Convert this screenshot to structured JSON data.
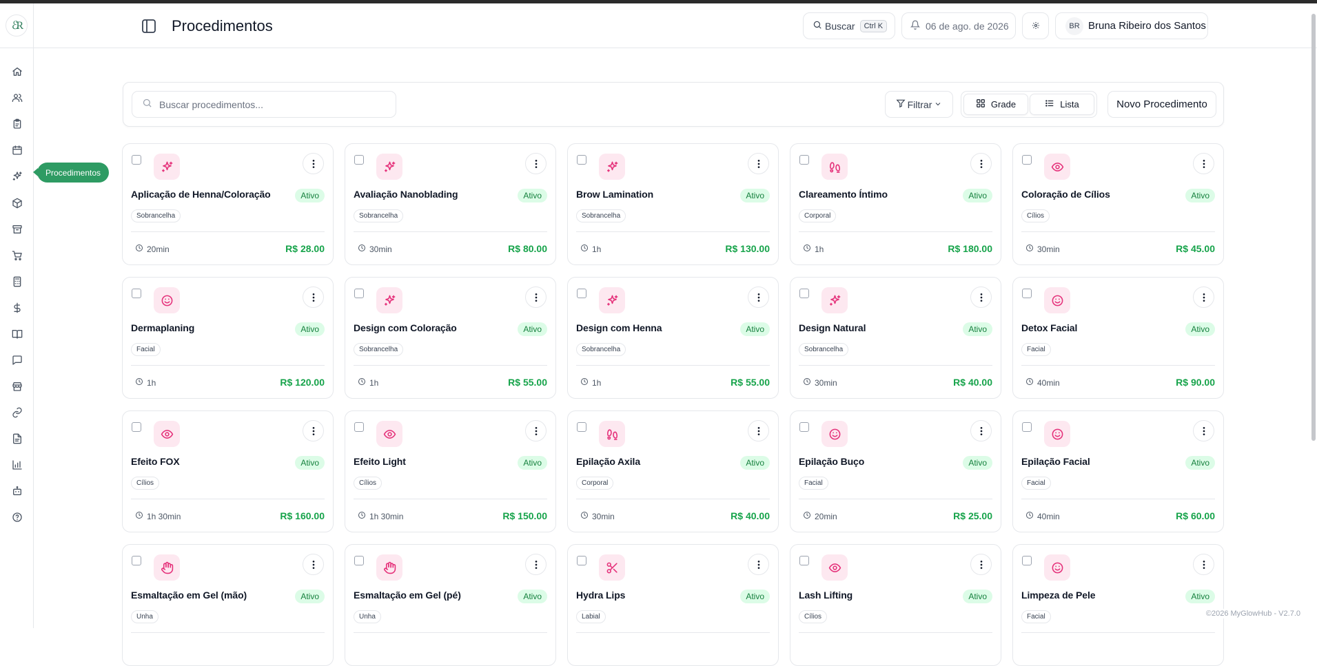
{
  "header": {
    "title": "Procedimentos",
    "search_label": "Buscar",
    "search_shortcut": "Ctrl K",
    "date": "06 de ago. de 2026",
    "user_initials": "BR",
    "user_name": "Bruna Ribeiro dos Santos"
  },
  "sidebar": {
    "logo": "ℰR",
    "tooltip": "Procedimentos",
    "items": [
      "home-icon",
      "users-icon",
      "clipboard-icon",
      "calendar-icon",
      "sparkles-icon",
      "package-icon",
      "archive-icon",
      "cart-icon",
      "calculator-icon",
      "dollar-icon",
      "book-icon",
      "message-icon",
      "store-icon",
      "link-icon",
      "file-icon",
      "chart-icon",
      "bot-icon",
      "help-icon"
    ]
  },
  "toolbar": {
    "search_placeholder": "Buscar procedimentos...",
    "filter_label": "Filtrar",
    "grid_label": "Grade",
    "list_label": "Lista",
    "new_label": "Novo Procedimento"
  },
  "cards": [
    {
      "name": "Aplicação de Henna/Coloração",
      "status": "Ativo",
      "category": "Sobrancelha",
      "icon": "sparkles-icon",
      "duration": "20min",
      "price": "R$ 28.00"
    },
    {
      "name": "Avaliação Nanoblading",
      "status": "Ativo",
      "category": "Sobrancelha",
      "icon": "sparkles-icon",
      "duration": "30min",
      "price": "R$ 80.00"
    },
    {
      "name": "Brow Lamination",
      "status": "Ativo",
      "category": "Sobrancelha",
      "icon": "sparkles-icon",
      "duration": "1h",
      "price": "R$ 130.00"
    },
    {
      "name": "Clareamento Íntimo",
      "status": "Ativo",
      "category": "Corporal",
      "icon": "footprints-icon",
      "duration": "1h",
      "price": "R$ 180.00"
    },
    {
      "name": "Coloração de Cílios",
      "status": "Ativo",
      "category": "Cílios",
      "icon": "eye-icon",
      "duration": "30min",
      "price": "R$ 45.00"
    },
    {
      "name": "Dermaplaning",
      "status": "Ativo",
      "category": "Facial",
      "icon": "smile-icon",
      "duration": "1h",
      "price": "R$ 120.00"
    },
    {
      "name": "Design com Coloração",
      "status": "Ativo",
      "category": "Sobrancelha",
      "icon": "sparkles-icon",
      "duration": "1h",
      "price": "R$ 55.00"
    },
    {
      "name": "Design com Henna",
      "status": "Ativo",
      "category": "Sobrancelha",
      "icon": "sparkles-icon",
      "duration": "1h",
      "price": "R$ 55.00"
    },
    {
      "name": "Design Natural",
      "status": "Ativo",
      "category": "Sobrancelha",
      "icon": "sparkles-icon",
      "duration": "30min",
      "price": "R$ 40.00"
    },
    {
      "name": "Detox Facial",
      "status": "Ativo",
      "category": "Facial",
      "icon": "smile-icon",
      "duration": "40min",
      "price": "R$ 90.00"
    },
    {
      "name": "Efeito FOX",
      "status": "Ativo",
      "category": "Cílios",
      "icon": "eye-icon",
      "duration": "1h 30min",
      "price": "R$ 160.00"
    },
    {
      "name": "Efeito Light",
      "status": "Ativo",
      "category": "Cílios",
      "icon": "eye-icon",
      "duration": "1h 30min",
      "price": "R$ 150.00"
    },
    {
      "name": "Epilação Axila",
      "status": "Ativo",
      "category": "Corporal",
      "icon": "footprints-icon",
      "duration": "30min",
      "price": "R$ 40.00"
    },
    {
      "name": "Epilação Buço",
      "status": "Ativo",
      "category": "Facial",
      "icon": "smile-icon",
      "duration": "20min",
      "price": "R$ 25.00"
    },
    {
      "name": "Epilação Facial",
      "status": "Ativo",
      "category": "Facial",
      "icon": "smile-icon",
      "duration": "40min",
      "price": "R$ 60.00"
    },
    {
      "name": "Esmaltação em Gel (mão)",
      "status": "Ativo",
      "category": "Unha",
      "icon": "hand-icon",
      "duration": "",
      "price": ""
    },
    {
      "name": "Esmaltação em Gel (pé)",
      "status": "Ativo",
      "category": "Unha",
      "icon": "hand-icon",
      "duration": "",
      "price": ""
    },
    {
      "name": "Hydra Lips",
      "status": "Ativo",
      "category": "Labial",
      "icon": "scissors-icon",
      "duration": "",
      "price": ""
    },
    {
      "name": "Lash Lifting",
      "status": "Ativo",
      "category": "Cílios",
      "icon": "eye-icon",
      "duration": "",
      "price": ""
    },
    {
      "name": "Limpeza de Pele",
      "status": "Ativo",
      "category": "Facial",
      "icon": "smile-icon",
      "duration": "",
      "price": ""
    }
  ],
  "footer": "©2026 MyGlowHub - V2.7.0",
  "colors": {
    "accent_green": "#2e9b63",
    "price_green": "#16a34a",
    "icon_pink": "#e5317a",
    "icon_bg": "#fde8f0"
  }
}
